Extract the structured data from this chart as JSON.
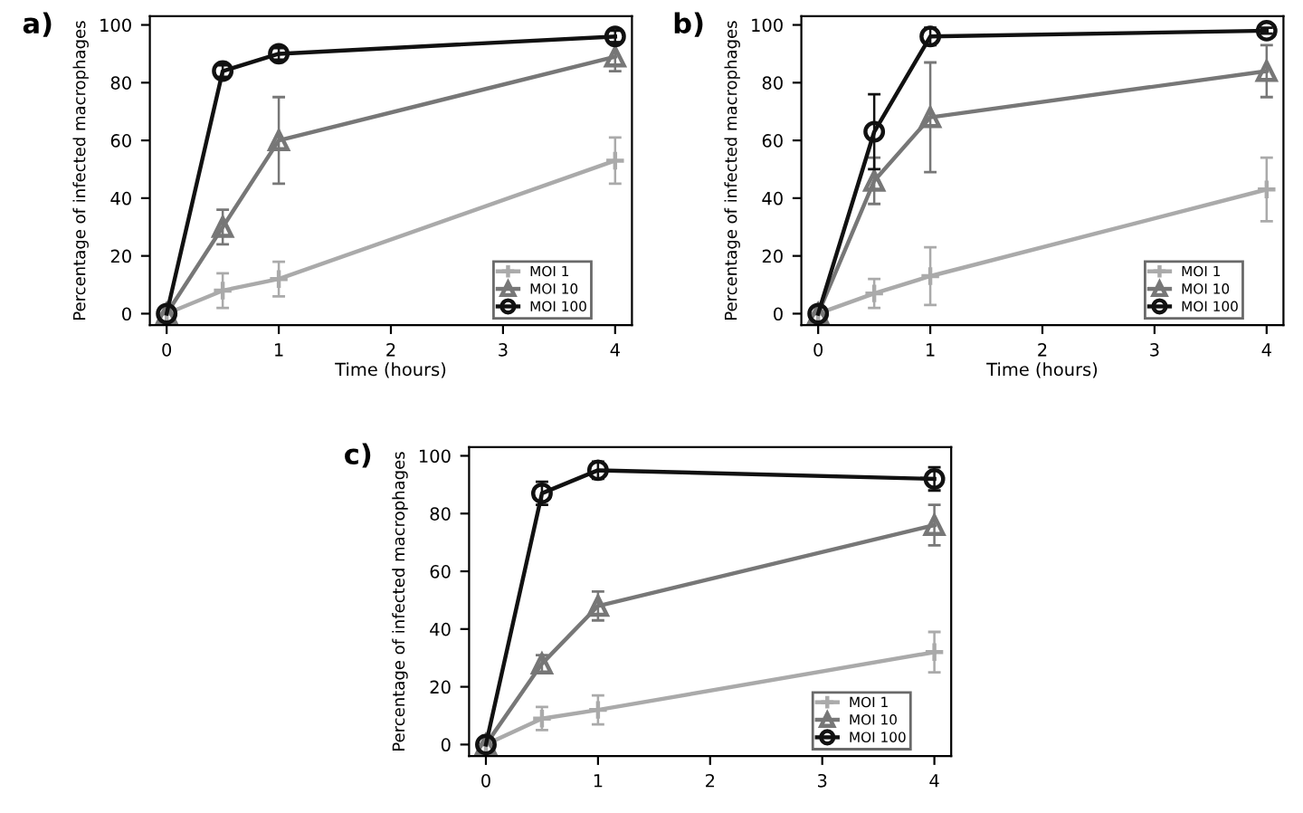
{
  "chart_data": [
    {
      "type": "line",
      "title": "a)",
      "xlabel": "Time (hours)",
      "ylabel": "Percentage of infected macrophages",
      "x": [
        0,
        0.5,
        1,
        4
      ],
      "xlim": [
        -0.15,
        4.15
      ],
      "ylim": [
        -4,
        103
      ],
      "xticks": [
        0,
        1,
        2,
        3,
        4
      ],
      "yticks": [
        0,
        20,
        40,
        60,
        80,
        100
      ],
      "grid": false,
      "legend": "bottom right",
      "series": [
        {
          "name": "MOI 1",
          "color": "#aaaaaa",
          "marker": "cross",
          "values": [
            0,
            8,
            12,
            53
          ],
          "errors": [
            null,
            6,
            6,
            8
          ]
        },
        {
          "name": "MOI 10",
          "color": "#777777",
          "marker": "triangle",
          "values": [
            0,
            30,
            60,
            89
          ],
          "errors": [
            null,
            6,
            15,
            5
          ]
        },
        {
          "name": "MOI 100",
          "color": "#111111",
          "marker": "circle",
          "values": [
            0,
            84,
            90,
            96
          ],
          "errors": [
            null,
            2,
            2,
            2
          ]
        }
      ]
    },
    {
      "type": "line",
      "title": "b)",
      "xlabel": "Time (hours)",
      "ylabel": "Percentage of infected macrophages",
      "x": [
        0,
        0.5,
        1,
        4
      ],
      "xlim": [
        -0.15,
        4.15
      ],
      "ylim": [
        -4,
        103
      ],
      "xticks": [
        0,
        1,
        2,
        3,
        4
      ],
      "yticks": [
        0,
        20,
        40,
        60,
        80,
        100
      ],
      "grid": false,
      "legend": "bottom right",
      "series": [
        {
          "name": "MOI 1",
          "color": "#aaaaaa",
          "marker": "cross",
          "values": [
            0,
            7,
            13,
            43
          ],
          "errors": [
            null,
            5,
            10,
            11
          ]
        },
        {
          "name": "MOI 10",
          "color": "#777777",
          "marker": "triangle",
          "values": [
            0,
            46,
            68,
            84
          ],
          "errors": [
            null,
            8,
            19,
            9
          ]
        },
        {
          "name": "MOI 100",
          "color": "#111111",
          "marker": "circle",
          "values": [
            0,
            63,
            96,
            98
          ],
          "errors": [
            null,
            13,
            3,
            1
          ]
        }
      ]
    },
    {
      "type": "line",
      "title": "c)",
      "ylabel": "Percentage of infected macrophages",
      "x": [
        0,
        0.5,
        1,
        4
      ],
      "xlim": [
        -0.15,
        4.15
      ],
      "ylim": [
        -4,
        103
      ],
      "xticks": [
        0,
        1,
        2,
        3,
        4
      ],
      "yticks": [
        0,
        20,
        40,
        60,
        80,
        100
      ],
      "grid": false,
      "legend": "bottom right",
      "series": [
        {
          "name": "MOI 1",
          "color": "#aaaaaa",
          "marker": "cross",
          "values": [
            0,
            9,
            12,
            32
          ],
          "errors": [
            null,
            4,
            5,
            7
          ]
        },
        {
          "name": "MOI 10",
          "color": "#777777",
          "marker": "triangle",
          "values": [
            0,
            28,
            48,
            76
          ],
          "errors": [
            null,
            3,
            5,
            7
          ]
        },
        {
          "name": "MOI 100",
          "color": "#111111",
          "marker": "circle",
          "values": [
            0,
            87,
            95,
            92
          ],
          "errors": [
            null,
            4,
            3,
            4
          ]
        }
      ]
    }
  ]
}
